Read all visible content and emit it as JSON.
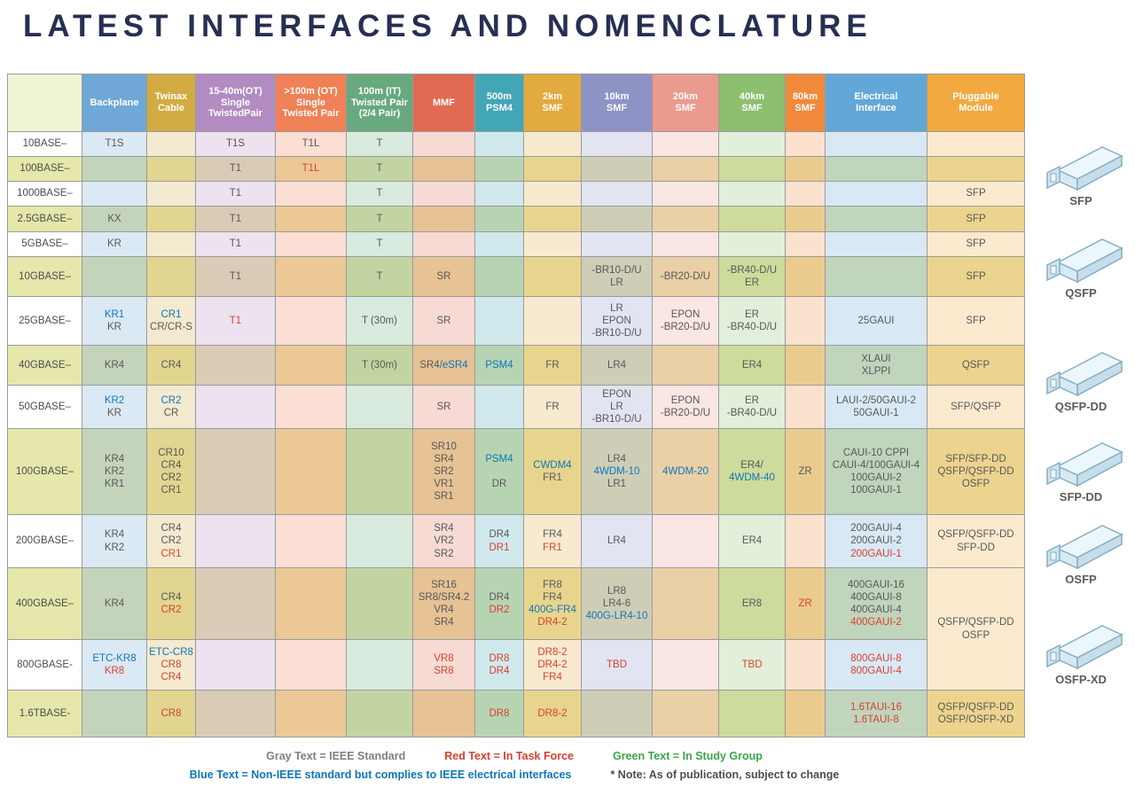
{
  "title": "LATEST INTERFACES AND NOMENCLATURE",
  "text_colors": {
    "g": "#58585a",
    "r": "#d9402e",
    "b": "#0f76bc"
  },
  "table": {
    "columns": [
      {
        "key": "label",
        "label": "",
        "color": "#dce8a0"
      },
      {
        "key": "bp",
        "label": "Backplane",
        "color": "#6fa8d6"
      },
      {
        "key": "tw",
        "label": "Twinax\nCable",
        "color": "#d2ab43"
      },
      {
        "key": "tp1",
        "label": "15-40m(OT)\nSingle\nTwistedPair",
        "color": "#b28bc2"
      },
      {
        "key": "tp2",
        "label": ">100m (OT)\nSingle\nTwisted Pair",
        "color": "#f08055"
      },
      {
        "key": "tp3",
        "label": "100m (IT)\nTwisted Pair\n(2/4 Pair)",
        "color": "#68a97f"
      },
      {
        "key": "mmf",
        "label": "MMF",
        "color": "#e06a52"
      },
      {
        "key": "psm",
        "label": "500m\nPSM4",
        "color": "#43a6b6"
      },
      {
        "key": "smf2",
        "label": "2km\nSMF",
        "color": "#e3aa3f"
      },
      {
        "key": "smf10",
        "label": "10km\nSMF",
        "color": "#8e93c6"
      },
      {
        "key": "smf20",
        "label": "20km\nSMF",
        "color": "#eb9a8e"
      },
      {
        "key": "smf40",
        "label": "40km\nSMF",
        "color": "#8cbf6e"
      },
      {
        "key": "smf80",
        "label": "80km\nSMF",
        "color": "#f0893b"
      },
      {
        "key": "elec",
        "label": "Electrical\nInterface",
        "color": "#62a7d8"
      },
      {
        "key": "plug",
        "label": "Pluggable\nModule",
        "color": "#f2a940"
      }
    ],
    "rows": [
      {
        "label": "10BASE–",
        "shade": "l",
        "cells": {
          "bp": [
            "T1S"
          ],
          "tp1": [
            "T1S"
          ],
          "tp2": [
            "T1L"
          ],
          "tp3": [
            "T"
          ]
        }
      },
      {
        "label": "100BASE–",
        "shade": "g",
        "cells": {
          "tp1": [
            "T1"
          ],
          "tp2": [
            {
              "t": "T1L",
              "c": "r"
            }
          ],
          "tp3": [
            "T"
          ]
        }
      },
      {
        "label": "1000BASE–",
        "shade": "l",
        "cells": {
          "tp1": [
            "T1"
          ],
          "tp3": [
            "T"
          ],
          "plug": [
            "SFP"
          ]
        }
      },
      {
        "label": "2.5GBASE–",
        "shade": "g",
        "cells": {
          "bp": [
            "KX"
          ],
          "tp1": [
            "T1"
          ],
          "tp3": [
            "T"
          ],
          "plug": [
            "SFP"
          ]
        }
      },
      {
        "label": "5GBASE–",
        "shade": "l",
        "cells": {
          "bp": [
            "KR"
          ],
          "tp1": [
            "T1"
          ],
          "tp3": [
            "T"
          ],
          "plug": [
            "SFP"
          ]
        }
      },
      {
        "label": "10GBASE–",
        "shade": "g",
        "cells": {
          "tp1": [
            "T1"
          ],
          "tp3": [
            "T"
          ],
          "mmf": [
            "SR"
          ],
          "smf10": [
            "-BR10-D/U",
            "LR"
          ],
          "smf20": [
            "-BR20-D/U"
          ],
          "smf40": [
            "-BR40-D/U",
            "ER"
          ],
          "plug": [
            "SFP"
          ]
        }
      },
      {
        "label": "25GBASE–",
        "shade": "l",
        "cells": {
          "bp": [
            {
              "t": "KR1",
              "c": "b"
            },
            "KR"
          ],
          "tw": [
            {
              "t": "CR1",
              "c": "b"
            },
            "CR/CR-S"
          ],
          "tp1": [
            {
              "t": "T1",
              "c": "r"
            }
          ],
          "tp3": [
            "T (30m)"
          ],
          "mmf": [
            "SR"
          ],
          "smf10": [
            "LR",
            "EPON",
            "-BR10-D/U"
          ],
          "smf20": [
            "EPON",
            "-BR20-D/U"
          ],
          "smf40": [
            "ER",
            "-BR40-D/U"
          ],
          "elec": [
            "25GAUI"
          ],
          "plug": [
            "SFP"
          ]
        }
      },
      {
        "label": "40GBASE–",
        "shade": "g",
        "cells": {
          "bp": [
            "KR4"
          ],
          "tw": [
            "CR4"
          ],
          "tp3": [
            "T (30m)"
          ],
          "mmf": [
            [
              "SR4",
              {
                "t": "/eSR4",
                "c": "b"
              }
            ]
          ],
          "psm": [
            {
              "t": "PSM4",
              "c": "b"
            }
          ],
          "smf2": [
            "FR"
          ],
          "smf10": [
            "LR4"
          ],
          "smf40": [
            "ER4"
          ],
          "elec": [
            "XLAUI",
            "XLPPI"
          ],
          "plug": [
            "QSFP"
          ]
        }
      },
      {
        "label": "50GBASE–",
        "shade": "l",
        "cells": {
          "bp": [
            {
              "t": "KR2",
              "c": "b"
            },
            "KR"
          ],
          "tw": [
            {
              "t": "CR2",
              "c": "b"
            },
            "CR"
          ],
          "mmf": [
            "SR"
          ],
          "smf2": [
            "FR"
          ],
          "smf10": [
            "EPON",
            "LR",
            "-BR10-D/U"
          ],
          "smf20": [
            "EPON",
            "-BR20-D/U"
          ],
          "smf40": [
            "ER",
            "-BR40-D/U"
          ],
          "elec": [
            "LAUI-2/50GAUI-2",
            "50GAUI-1"
          ],
          "plug": [
            "SFP/QSFP"
          ]
        }
      },
      {
        "label": "100GBASE–",
        "shade": "g",
        "cells": {
          "bp": [
            "KR4",
            "KR2",
            "KR1"
          ],
          "tw": [
            "CR10",
            "CR4",
            "CR2",
            "CR1"
          ],
          "mmf": [
            "SR10",
            "SR4",
            "SR2",
            "VR1",
            "SR1"
          ],
          "psm": [
            {
              "t": "PSM4",
              "c": "b"
            },
            "",
            "DR"
          ],
          "smf2": [
            {
              "t": "CWDM4",
              "c": "b"
            },
            "FR1"
          ],
          "smf10": [
            "LR4",
            {
              "t": "4WDM-10",
              "c": "b"
            },
            "LR1"
          ],
          "smf20": [
            {
              "t": "4WDM-20",
              "c": "b"
            }
          ],
          "smf40": [
            "ER4/",
            {
              "t": "4WDM-40",
              "c": "b"
            }
          ],
          "smf80": [
            "ZR"
          ],
          "elec": [
            "CAUI-10 CPPI",
            "CAUI-4/100GAUI-4",
            "100GAUI-2",
            "100GAUI-1"
          ],
          "plug": [
            "SFP/SFP-DD",
            "QSFP/QSFP-DD",
            "OSFP"
          ]
        }
      },
      {
        "label": "200GBASE–",
        "shade": "l",
        "cells": {
          "bp": [
            "KR4",
            "KR2"
          ],
          "tw": [
            "CR4",
            "CR2",
            {
              "t": "CR1",
              "c": "r"
            }
          ],
          "mmf": [
            "SR4",
            "VR2",
            "SR2"
          ],
          "psm": [
            "DR4",
            {
              "t": "DR1",
              "c": "r"
            }
          ],
          "smf2": [
            "FR4",
            {
              "t": "FR1",
              "c": "r"
            }
          ],
          "smf10": [
            "LR4"
          ],
          "smf40": [
            "ER4"
          ],
          "elec": [
            "200GAUI-4",
            "200GAUI-2",
            {
              "t": "200GAUI-1",
              "c": "r"
            }
          ],
          "plug": [
            "QSFP/QSFP-DD",
            "SFP-DD"
          ]
        }
      },
      {
        "label": "400GBASE–",
        "shade": "g",
        "cells": {
          "bp": [
            "KR4"
          ],
          "tw": [
            "CR4",
            {
              "t": "CR2",
              "c": "r"
            }
          ],
          "mmf": [
            "SR16",
            "SR8/SR4.2",
            "VR4",
            "SR4"
          ],
          "psm": [
            "DR4",
            {
              "t": "DR2",
              "c": "r"
            }
          ],
          "smf2": [
            "FR8",
            "FR4",
            {
              "t": "400G-FR4",
              "c": "b"
            },
            {
              "t": "DR4-2",
              "c": "r"
            }
          ],
          "smf10": [
            "LR8",
            "LR4-6",
            {
              "t": "400G-LR4-10",
              "c": "b"
            }
          ],
          "smf40": [
            "ER8"
          ],
          "smf80": [
            {
              "t": "ZR",
              "c": "r"
            }
          ],
          "elec": [
            "400GAUI-16",
            "400GAUI-8",
            "400GAUI-4",
            {
              "t": "400GAUI-2",
              "c": "r"
            }
          ],
          "plug": {
            "rowspan": 2,
            "shade": "l",
            "lines": [
              "QSFP/QSFP-DD",
              "OSFP"
            ]
          }
        }
      },
      {
        "label": "800GBASE-",
        "shade": "l",
        "cells": {
          "bp": [
            {
              "t": "ETC-KR8",
              "c": "b"
            },
            {
              "t": "KR8",
              "c": "r"
            }
          ],
          "tw": [
            {
              "t": "ETC-CR8",
              "c": "b"
            },
            {
              "t": "CR8",
              "c": "r"
            },
            {
              "t": "CR4",
              "c": "r"
            }
          ],
          "mmf": [
            {
              "t": "VR8",
              "c": "r"
            },
            {
              "t": "SR8",
              "c": "r"
            }
          ],
          "psm": [
            {
              "t": "DR8",
              "c": "r"
            },
            {
              "t": "DR4",
              "c": "r"
            }
          ],
          "smf2": [
            {
              "t": "DR8-2",
              "c": "r"
            },
            {
              "t": "DR4-2",
              "c": "r"
            },
            {
              "t": "FR4",
              "c": "r"
            }
          ],
          "smf10": [
            {
              "t": "TBD",
              "c": "r"
            }
          ],
          "smf40": [
            {
              "t": "TBD",
              "c": "r"
            }
          ],
          "elec": [
            {
              "t": "800GAUI-8",
              "c": "r"
            },
            {
              "t": "800GAUI-4",
              "c": "r"
            }
          ],
          "plug": "skip"
        }
      },
      {
        "label": "1.6TBASE-",
        "shade": "g",
        "cells": {
          "tw": [
            {
              "t": "CR8",
              "c": "r"
            }
          ],
          "psm": [
            {
              "t": "DR8",
              "c": "r"
            }
          ],
          "smf2": [
            {
              "t": "DR8-2",
              "c": "r"
            }
          ],
          "elec": [
            {
              "t": "1.6TAUI-16",
              "c": "r"
            },
            {
              "t": "1.6TAUI-8",
              "c": "r"
            }
          ],
          "plug": [
            "QSFP/QSFP-DD",
            "OSFP/OSFP-XD"
          ]
        }
      }
    ]
  },
  "modules": [
    "SFP",
    "QSFP",
    "QSFP-DD",
    "SFP-DD",
    "OSFP",
    "OSFP-XD"
  ],
  "legend": {
    "row1": [
      {
        "text": "Gray Text =  IEEE Standard",
        "color": "#808083"
      },
      {
        "text": "Red Text = In Task Force",
        "color": "#d9402e"
      },
      {
        "text": "Green Text = In Study Group",
        "color": "#3ba548"
      }
    ],
    "row2": [
      {
        "text": "Blue Text = Non-IEEE standard but complies to IEEE electrical interfaces",
        "color": "#0f76bc"
      },
      {
        "text": "* Note: As of publication, subject to change",
        "color": "#4d4d4f"
      }
    ]
  }
}
